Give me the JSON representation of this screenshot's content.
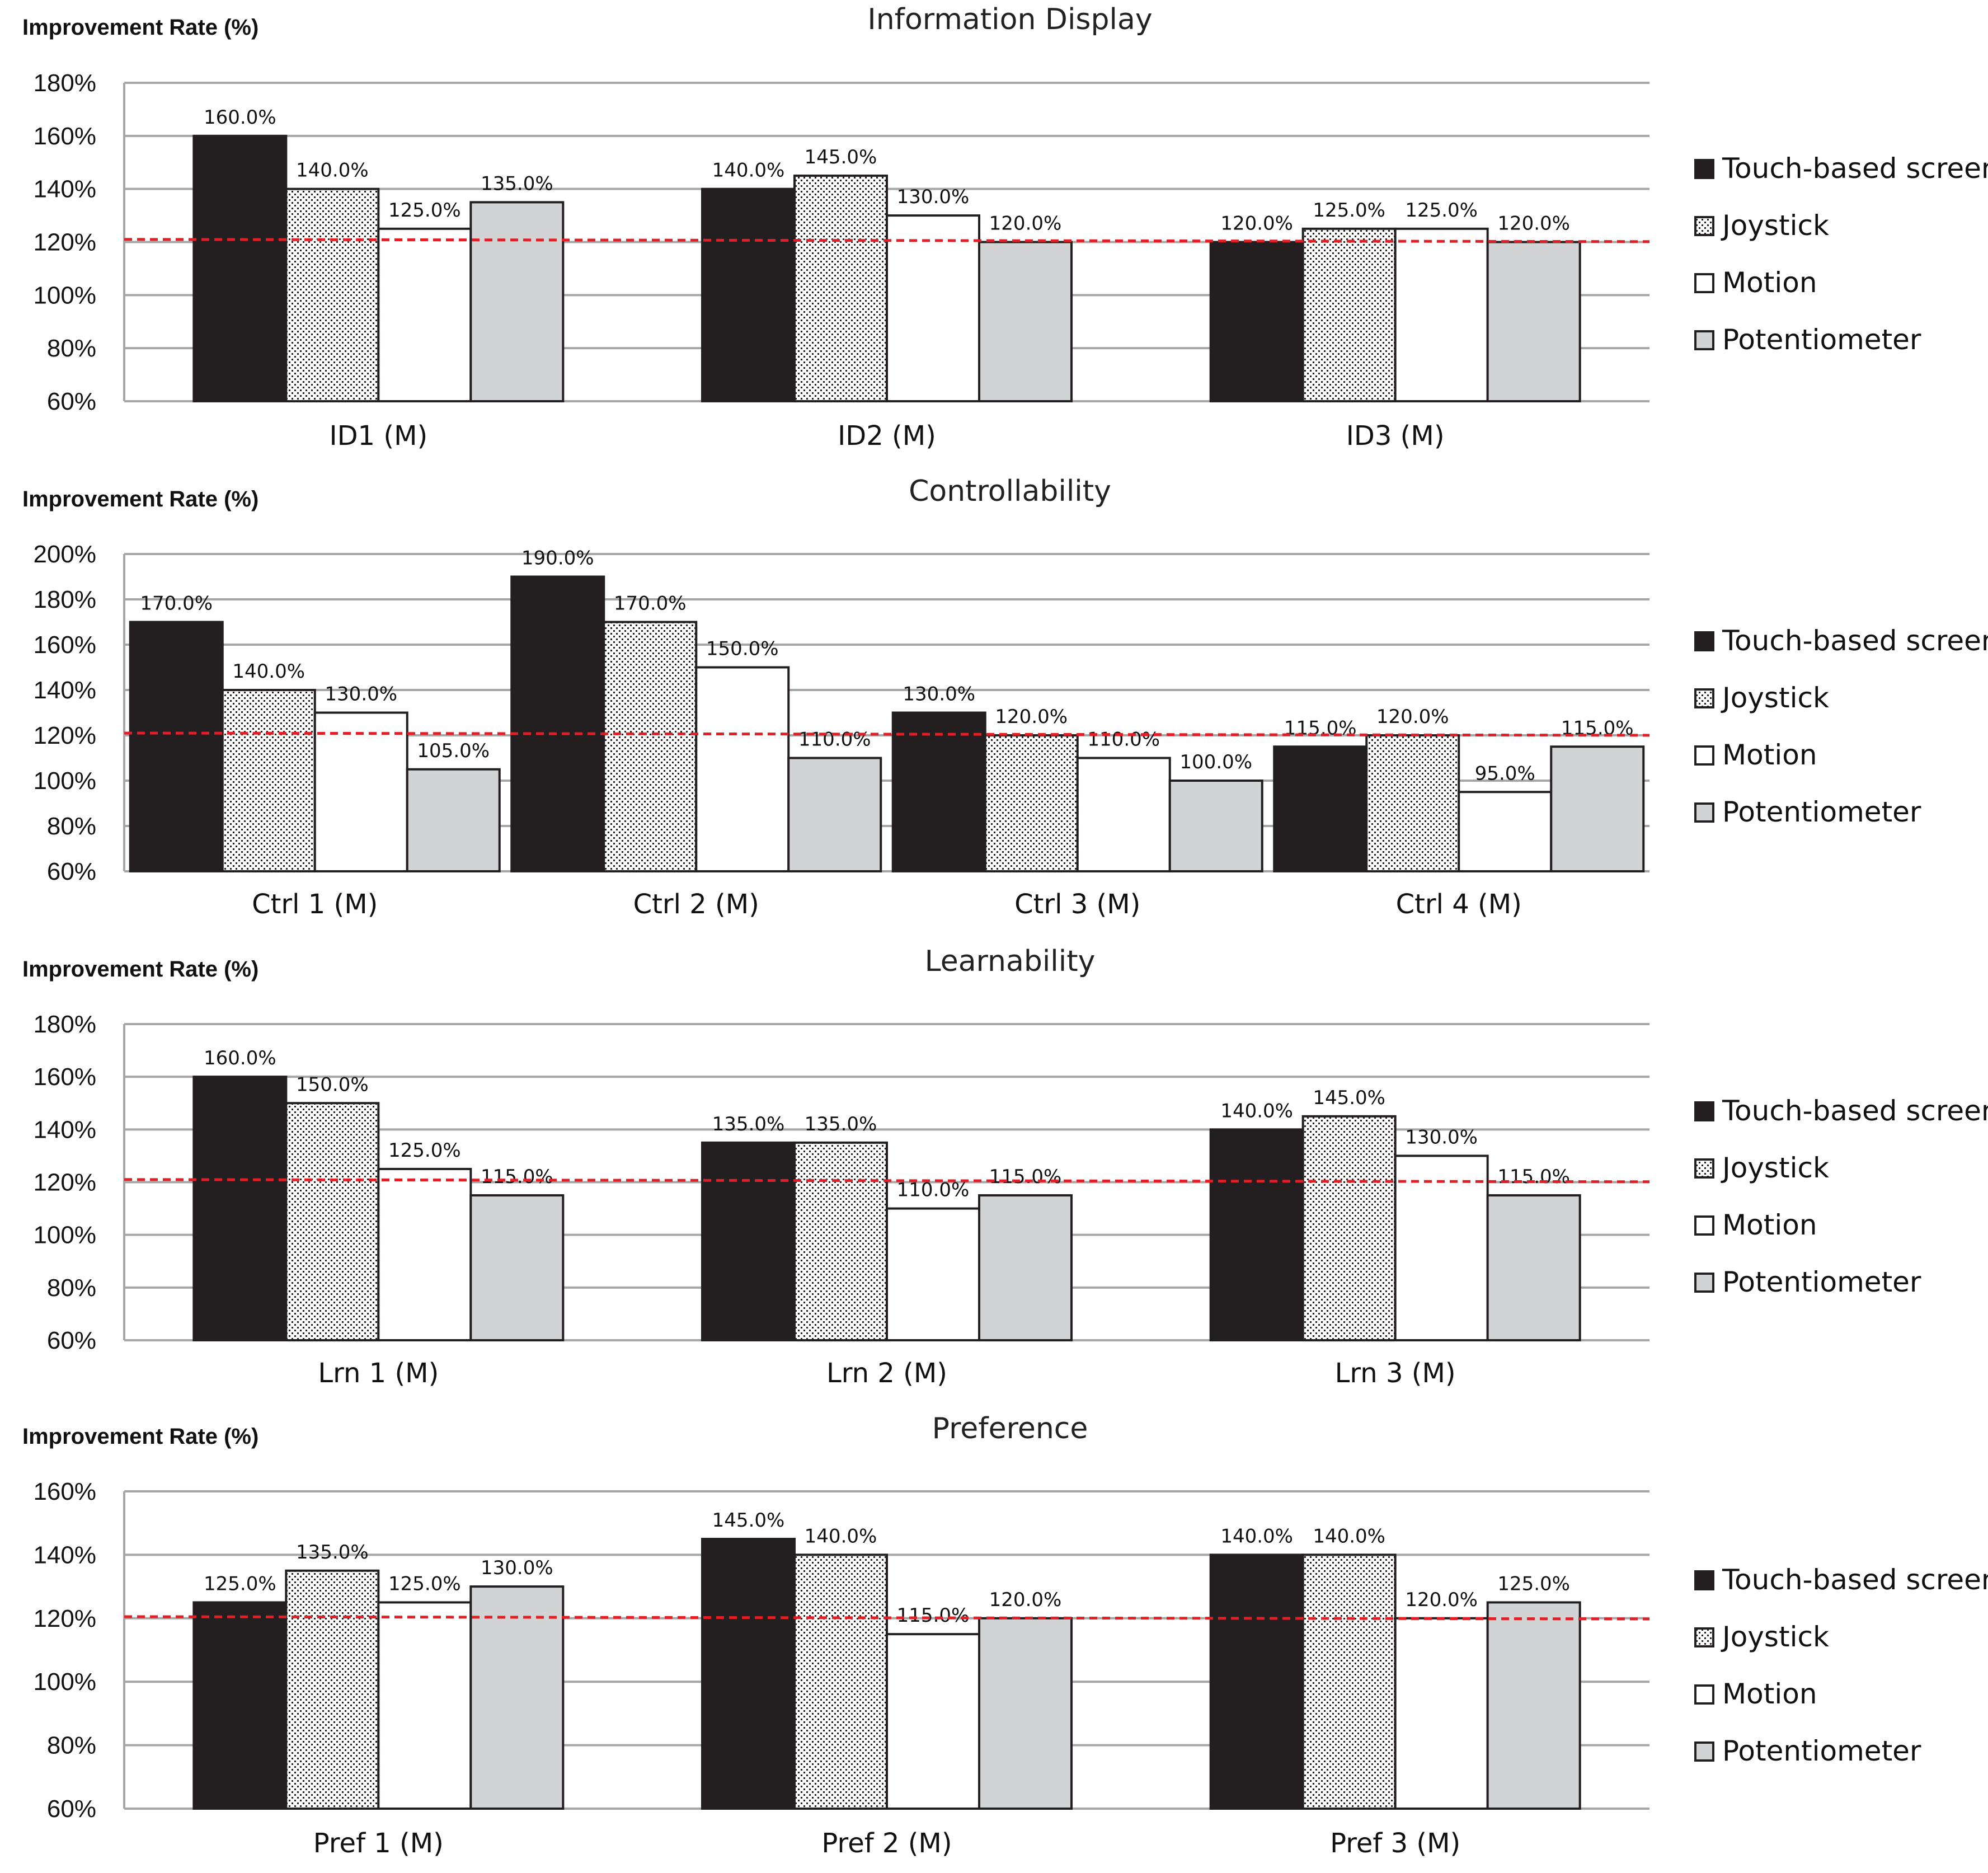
{
  "colors": {
    "touch": "#231f20",
    "joystick_bg": "#ffffff",
    "joystick_dot": "#231f20",
    "motion": "#ffffff",
    "potentiometer": "#d1d3d4",
    "grid": "#a6a6a6",
    "reference_line": "#e31e24"
  },
  "legend": [
    "Touch-based screen",
    "Joystick",
    "Motion",
    "Potentiometer"
  ],
  "chart_data": [
    {
      "type": "bar",
      "title": "Information Display",
      "ylabel": "Improvement Rate (%)",
      "ylim": [
        60,
        180
      ],
      "yticks": [
        "60%",
        "80%",
        "100%",
        "120%",
        "140%",
        "160%",
        "180%"
      ],
      "reference_line": 121,
      "categories": [
        "ID1 (M)",
        "ID2 (M)",
        "ID3 (M)"
      ],
      "series": [
        {
          "name": "Touch-based screen",
          "values": [
            160,
            140,
            120
          ],
          "labels": [
            "160.0%",
            "140.0%",
            "120.0%"
          ]
        },
        {
          "name": "Joystick",
          "values": [
            140,
            145,
            125
          ],
          "labels": [
            "140.0%",
            "145.0%",
            "125.0%"
          ]
        },
        {
          "name": "Motion",
          "values": [
            125,
            130,
            125
          ],
          "labels": [
            "125.0%",
            "130.0%",
            "125.0%"
          ]
        },
        {
          "name": "Potentiometer",
          "values": [
            135,
            120,
            120
          ],
          "labels": [
            "135.0%",
            "120.0%",
            "120.0%"
          ]
        }
      ]
    },
    {
      "type": "bar",
      "title": "Controllability",
      "ylabel": "Improvement Rate (%)",
      "ylim": [
        60,
        200
      ],
      "yticks": [
        "60%",
        "80%",
        "100%",
        "120%",
        "140%",
        "160%",
        "180%",
        "200%"
      ],
      "reference_line": 121,
      "categories": [
        "Ctrl 1 (M)",
        "Ctrl 2 (M)",
        "Ctrl 3 (M)",
        "Ctrl 4 (M)"
      ],
      "series": [
        {
          "name": "Touch-based screen",
          "values": [
            170,
            190,
            130,
            115
          ],
          "labels": [
            "170.0%",
            "190.0%",
            "130.0%",
            "115.0%"
          ]
        },
        {
          "name": "Joystick",
          "values": [
            140,
            170,
            120,
            120
          ],
          "labels": [
            "140.0%",
            "170.0%",
            "120.0%",
            "120.0%"
          ]
        },
        {
          "name": "Motion",
          "values": [
            130,
            150,
            110,
            95
          ],
          "labels": [
            "130.0%",
            "150.0%",
            "110.0%",
            "95.0%"
          ]
        },
        {
          "name": "Potentiometer",
          "values": [
            105,
            110,
            100,
            115
          ],
          "labels": [
            "105.0%",
            "110.0%",
            "100.0%",
            "115.0%"
          ]
        }
      ]
    },
    {
      "type": "bar",
      "title": "Learnability",
      "ylabel": "Improvement Rate (%)",
      "ylim": [
        60,
        180
      ],
      "yticks": [
        "60%",
        "80%",
        "100%",
        "120%",
        "140%",
        "160%",
        "180%"
      ],
      "reference_line": 121,
      "categories": [
        "Lrn 1 (M)",
        "Lrn 2 (M)",
        "Lrn 3 (M)"
      ],
      "series": [
        {
          "name": "Touch-based screen",
          "values": [
            160,
            135,
            140
          ],
          "labels": [
            "160.0%",
            "135.0%",
            "140.0%"
          ]
        },
        {
          "name": "Joystick",
          "values": [
            150,
            135,
            145
          ],
          "labels": [
            "150.0%",
            "135.0%",
            "145.0%"
          ]
        },
        {
          "name": "Motion",
          "values": [
            125,
            110,
            130
          ],
          "labels": [
            "125.0%",
            "110.0%",
            "130.0%"
          ]
        },
        {
          "name": "Potentiometer",
          "values": [
            115,
            115,
            115
          ],
          "labels": [
            "115.0%",
            "115.0%",
            "115.0%"
          ]
        }
      ]
    },
    {
      "type": "bar",
      "title": "Preference",
      "ylabel": "Improvement Rate (%)",
      "ylim": [
        60,
        160
      ],
      "yticks": [
        "60%",
        "80%",
        "100%",
        "120%",
        "140%",
        "160%"
      ],
      "reference_line": 120.5,
      "categories": [
        "Pref 1 (M)",
        "Pref 2 (M)",
        "Pref 3 (M)"
      ],
      "series": [
        {
          "name": "Touch-based screen",
          "values": [
            125,
            145,
            140
          ],
          "labels": [
            "125.0%",
            "145.0%",
            "140.0%"
          ]
        },
        {
          "name": "Joystick",
          "values": [
            135,
            140,
            140
          ],
          "labels": [
            "135.0%",
            "140.0%",
            "140.0%"
          ]
        },
        {
          "name": "Motion",
          "values": [
            125,
            115,
            120
          ],
          "labels": [
            "125.0%",
            "115.0%",
            "120.0%"
          ]
        },
        {
          "name": "Potentiometer",
          "values": [
            130,
            120,
            125
          ],
          "labels": [
            "130.0%",
            "120.0%",
            "125.0%"
          ]
        }
      ]
    }
  ]
}
